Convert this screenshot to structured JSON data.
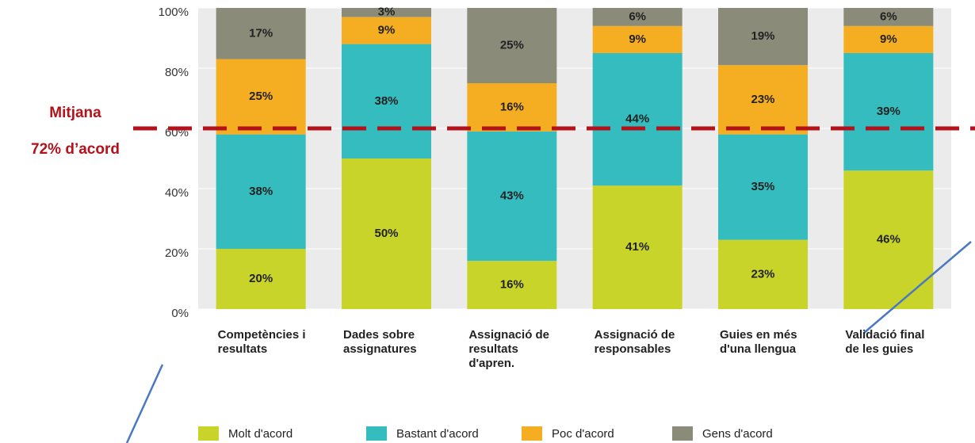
{
  "chart_data": {
    "type": "stacked_bar",
    "categories": [
      "Competències i resultats",
      "Dades sobre assignatures",
      "Assignació de resultats d'apren.",
      "Assignació de responsables",
      "Guies en més d'una llengua",
      "Validació final de les guies"
    ],
    "series": [
      {
        "name": "Molt d'acord",
        "color": "#c9d42a",
        "values": [
          20,
          50,
          16,
          41,
          23,
          46
        ],
        "value_labels": [
          "20%",
          "50%",
          "16%",
          "41%",
          "23%",
          "46%"
        ]
      },
      {
        "name": "Bastant d'acord",
        "color": "#35bcbf",
        "values": [
          38,
          38,
          43,
          44,
          35,
          39
        ],
        "value_labels": [
          "38%",
          "38%",
          "43%",
          "44%",
          "35%",
          "39%"
        ]
      },
      {
        "name": "Poc d'acord",
        "color": "#f5ae21",
        "values": [
          25,
          9,
          16,
          9,
          23,
          9
        ],
        "value_labels": [
          "25%",
          "9%",
          "16%",
          "9%",
          "23%",
          "9%"
        ]
      },
      {
        "name": "Gens d'acord",
        "color": "#8a8b78",
        "values": [
          17,
          3,
          25,
          6,
          19,
          6
        ],
        "value_labels": [
          "17%",
          "3%",
          "25%",
          "6%",
          "19%",
          "6%"
        ]
      }
    ],
    "ylim": [
      0,
      100
    ],
    "yticks": [
      {
        "value": 0,
        "label": "0%"
      },
      {
        "value": 20,
        "label": "20%"
      },
      {
        "value": 40,
        "label": "40%"
      },
      {
        "value": 60,
        "label": "60%"
      },
      {
        "value": 80,
        "label": "80%"
      },
      {
        "value": 100,
        "label": "100%"
      }
    ],
    "grid": true,
    "legend": "bottom",
    "annotations": [
      "Mitjana",
      "72% d’acord"
    ]
  }
}
